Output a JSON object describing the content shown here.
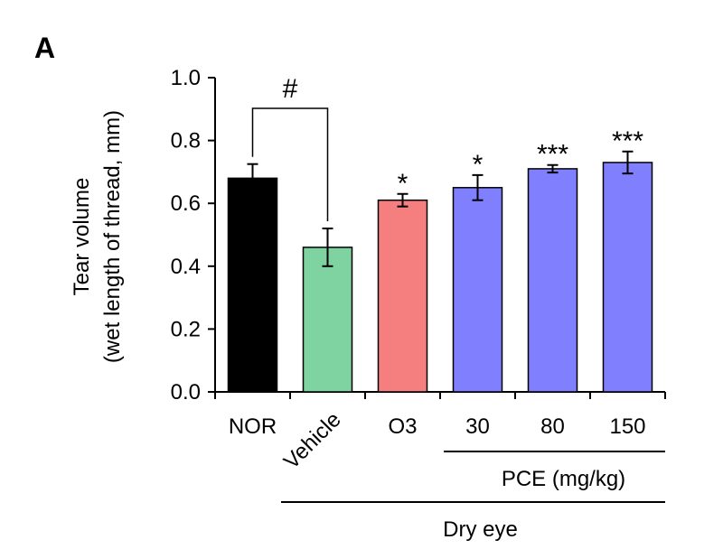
{
  "panel_label": "A",
  "chart_data": {
    "type": "bar",
    "categories": [
      "NOR",
      "Vehicle",
      "O3",
      "30",
      "80",
      "150"
    ],
    "values": [
      0.68,
      0.46,
      0.61,
      0.65,
      0.71,
      0.73
    ],
    "errors": [
      0.045,
      0.06,
      0.02,
      0.04,
      0.012,
      0.035
    ],
    "colors": [
      "#000000",
      "#7fd3a0",
      "#f57f7f",
      "#8080ff",
      "#8080ff",
      "#8080ff"
    ],
    "significance": [
      "",
      "",
      "*",
      "*",
      "***",
      "***"
    ],
    "comparison": {
      "from": "NOR",
      "to": "Vehicle",
      "label": "#"
    },
    "ylabel_line1": "Tear volume",
    "ylabel_line2": "(wet length of thread, mm)",
    "ylim": [
      0,
      1.0
    ],
    "yticks": [
      "0.0",
      "0.2",
      "0.4",
      "0.6",
      "0.8",
      "1.0"
    ],
    "ytick_values": [
      0,
      0.2,
      0.4,
      0.6,
      0.8,
      1.0
    ],
    "groups": [
      {
        "label": "PCE (mg/kg)",
        "categories": [
          "30",
          "80",
          "150"
        ]
      },
      {
        "label": "Dry eye",
        "categories": [
          "Vehicle",
          "O3",
          "30",
          "80",
          "150"
        ]
      }
    ]
  }
}
